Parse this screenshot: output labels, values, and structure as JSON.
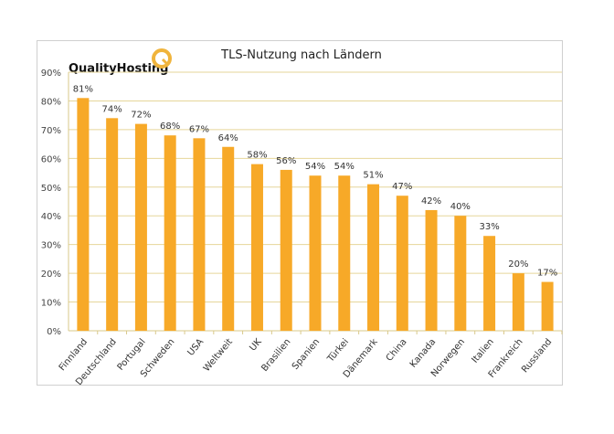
{
  "chart_data": {
    "type": "bar",
    "title": "TLS-Nutzung nach Ländern",
    "logo_text": "QualityHosting",
    "categories": [
      "Finnland",
      "Deutschland",
      "Portugal",
      "Schweden",
      "USA",
      "Weltweit",
      "UK",
      "Brasilien",
      "Spanien",
      "Türkei",
      "Dänemark",
      "China",
      "Kanada",
      "Norwegen",
      "Italien",
      "Frankreich",
      "Russland"
    ],
    "values": [
      81,
      74,
      72,
      68,
      67,
      64,
      58,
      56,
      54,
      54,
      51,
      47,
      42,
      40,
      33,
      20,
      17
    ],
    "data_labels": [
      "81%",
      "74%",
      "72%",
      "68%",
      "67%",
      "64%",
      "58%",
      "56%",
      "54%",
      "54%",
      "51%",
      "47%",
      "42%",
      "40%",
      "33%",
      "20%",
      "17%"
    ],
    "yticks": [
      "0%",
      "10%",
      "20%",
      "30%",
      "40%",
      "50%",
      "60%",
      "70%",
      "80%",
      "90%"
    ],
    "ylim": [
      0,
      90
    ],
    "xlabel": "",
    "ylabel": "",
    "grid": true,
    "legend": "none",
    "colors": {
      "bar": "#F7A928",
      "grid": "#E6D69A",
      "axis": "#D9C98A",
      "logo_accent": "#F0B43C"
    }
  }
}
